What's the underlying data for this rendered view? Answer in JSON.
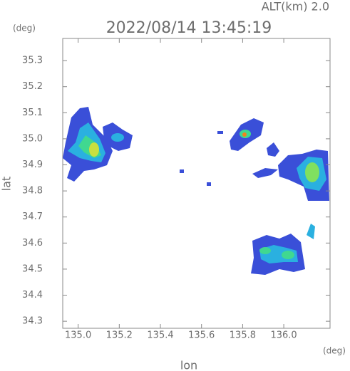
{
  "chart_data": {
    "type": "map",
    "subtitle": "ALT(km) 2.0",
    "title": "2022/08/14 13:45:19",
    "y_unit": "(deg)",
    "x_unit": "(deg)",
    "x_label": "lon",
    "y_label": "lat",
    "xlim": [
      134.925,
      136.225
    ],
    "ylim": [
      34.273,
      35.385
    ],
    "xticks": [
      {
        "value": 135,
        "label": "135.0"
      },
      135.2,
      135.4,
      135.6,
      135.8,
      {
        "value": 136,
        "label": "136.0"
      }
    ],
    "yticks": [
      34.3,
      34.4,
      {
        "value": 34.5,
        "label": "34.5"
      },
      34.6,
      34.7,
      34.8,
      34.9,
      {
        "value": 35,
        "label": "35.0"
      },
      35.1,
      35.2,
      35.3
    ]
  }
}
